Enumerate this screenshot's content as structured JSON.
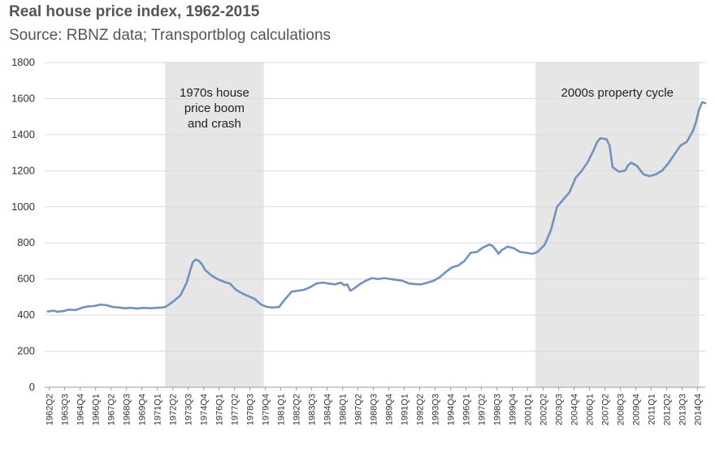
{
  "chart_data": {
    "type": "line",
    "title": "Real house price index, 1962-2015",
    "subtitle": "Source: RBNZ data; Transportblog calculations",
    "xlabel": "",
    "ylabel": "",
    "ylim": [
      0,
      1800
    ],
    "yticks": [
      0,
      200,
      400,
      600,
      800,
      1000,
      1200,
      1400,
      1600,
      1800
    ],
    "grid": true,
    "x_tick_labels": [
      "1962Q2",
      "1963Q3",
      "1964Q4",
      "1966Q1",
      "1967Q2",
      "1968Q3",
      "1969Q4",
      "1971Q1",
      "1972Q2",
      "1973Q3",
      "1974Q4",
      "1976Q1",
      "1977Q2",
      "1978Q3",
      "1979Q4",
      "1981Q1",
      "1982Q2",
      "1983Q3",
      "1984Q4",
      "1986Q1",
      "1987Q2",
      "1988Q3",
      "1989Q4",
      "1991Q1",
      "1992Q2",
      "1993Q3",
      "1994Q4",
      "1996Q1",
      "1997Q2",
      "1998Q3",
      "1999Q4",
      "2001Q1",
      "2002Q2",
      "2003Q3",
      "2004Q4",
      "2006Q1",
      "2007Q2",
      "2008Q3",
      "2009Q4",
      "2011Q1",
      "2012Q2",
      "2013Q3",
      "2014Q4"
    ],
    "shaded_regions": [
      {
        "label": "1970s house price boom and crash",
        "start": 1971.75,
        "end": 1979.75,
        "lines": [
          "1970s house",
          "price boom",
          "and crash"
        ]
      },
      {
        "label": "2000s property cycle",
        "start": 2001.75,
        "end": 2015.0,
        "lines": [
          "2000s property cycle"
        ]
      }
    ],
    "series": [
      {
        "name": "Real house price index",
        "color": "#7092be",
        "points": [
          [
            1962.25,
            420
          ],
          [
            1962.75,
            425
          ],
          [
            1963.0,
            418
          ],
          [
            1963.5,
            422
          ],
          [
            1964.0,
            430
          ],
          [
            1964.5,
            428
          ],
          [
            1965.0,
            440
          ],
          [
            1965.5,
            448
          ],
          [
            1966.0,
            450
          ],
          [
            1966.5,
            458
          ],
          [
            1967.0,
            455
          ],
          [
            1967.5,
            445
          ],
          [
            1968.0,
            442
          ],
          [
            1968.5,
            438
          ],
          [
            1969.0,
            440
          ],
          [
            1969.5,
            436
          ],
          [
            1970.0,
            440
          ],
          [
            1970.5,
            438
          ],
          [
            1971.0,
            440
          ],
          [
            1971.5,
            442
          ],
          [
            1971.75,
            445
          ],
          [
            1972.0,
            455
          ],
          [
            1972.5,
            480
          ],
          [
            1973.0,
            510
          ],
          [
            1973.5,
            580
          ],
          [
            1973.75,
            640
          ],
          [
            1974.0,
            695
          ],
          [
            1974.25,
            708
          ],
          [
            1974.5,
            700
          ],
          [
            1974.75,
            680
          ],
          [
            1975.0,
            650
          ],
          [
            1975.5,
            620
          ],
          [
            1976.0,
            600
          ],
          [
            1976.5,
            585
          ],
          [
            1977.0,
            575
          ],
          [
            1977.5,
            540
          ],
          [
            1978.0,
            520
          ],
          [
            1978.5,
            505
          ],
          [
            1979.0,
            490
          ],
          [
            1979.5,
            460
          ],
          [
            1979.75,
            452
          ],
          [
            1980.0,
            445
          ],
          [
            1980.5,
            442
          ],
          [
            1981.0,
            445
          ],
          [
            1981.25,
            470
          ],
          [
            1981.5,
            490
          ],
          [
            1982.0,
            530
          ],
          [
            1982.5,
            535
          ],
          [
            1983.0,
            540
          ],
          [
            1983.5,
            555
          ],
          [
            1984.0,
            575
          ],
          [
            1984.5,
            580
          ],
          [
            1985.0,
            575
          ],
          [
            1985.5,
            570
          ],
          [
            1986.0,
            580
          ],
          [
            1986.25,
            565
          ],
          [
            1986.5,
            570
          ],
          [
            1986.75,
            535
          ],
          [
            1987.0,
            545
          ],
          [
            1987.5,
            570
          ],
          [
            1988.0,
            590
          ],
          [
            1988.5,
            605
          ],
          [
            1989.0,
            600
          ],
          [
            1989.5,
            605
          ],
          [
            1990.0,
            600
          ],
          [
            1990.5,
            595
          ],
          [
            1991.0,
            590
          ],
          [
            1991.5,
            575
          ],
          [
            1992.0,
            572
          ],
          [
            1992.5,
            570
          ],
          [
            1993.0,
            580
          ],
          [
            1993.5,
            590
          ],
          [
            1994.0,
            610
          ],
          [
            1994.5,
            640
          ],
          [
            1995.0,
            665
          ],
          [
            1995.5,
            675
          ],
          [
            1996.0,
            700
          ],
          [
            1996.5,
            745
          ],
          [
            1997.0,
            750
          ],
          [
            1997.5,
            775
          ],
          [
            1998.0,
            790
          ],
          [
            1998.25,
            785
          ],
          [
            1998.5,
            765
          ],
          [
            1998.75,
            740
          ],
          [
            1999.0,
            760
          ],
          [
            1999.5,
            780
          ],
          [
            2000.0,
            770
          ],
          [
            2000.5,
            750
          ],
          [
            2001.0,
            745
          ],
          [
            2001.5,
            740
          ],
          [
            2001.75,
            745
          ],
          [
            2002.0,
            755
          ],
          [
            2002.5,
            790
          ],
          [
            2003.0,
            870
          ],
          [
            2003.5,
            1000
          ],
          [
            2004.0,
            1040
          ],
          [
            2004.5,
            1080
          ],
          [
            2005.0,
            1160
          ],
          [
            2005.5,
            1200
          ],
          [
            2006.0,
            1250
          ],
          [
            2006.5,
            1320
          ],
          [
            2006.75,
            1360
          ],
          [
            2007.0,
            1380
          ],
          [
            2007.5,
            1375
          ],
          [
            2007.75,
            1340
          ],
          [
            2008.0,
            1220
          ],
          [
            2008.5,
            1195
          ],
          [
            2009.0,
            1200
          ],
          [
            2009.25,
            1230
          ],
          [
            2009.5,
            1245
          ],
          [
            2010.0,
            1225
          ],
          [
            2010.5,
            1180
          ],
          [
            2011.0,
            1170
          ],
          [
            2011.5,
            1180
          ],
          [
            2012.0,
            1200
          ],
          [
            2012.5,
            1240
          ],
          [
            2013.0,
            1290
          ],
          [
            2013.5,
            1340
          ],
          [
            2014.0,
            1360
          ],
          [
            2014.5,
            1420
          ],
          [
            2014.75,
            1470
          ],
          [
            2015.0,
            1540
          ],
          [
            2015.25,
            1580
          ],
          [
            2015.5,
            1575
          ]
        ]
      }
    ]
  }
}
